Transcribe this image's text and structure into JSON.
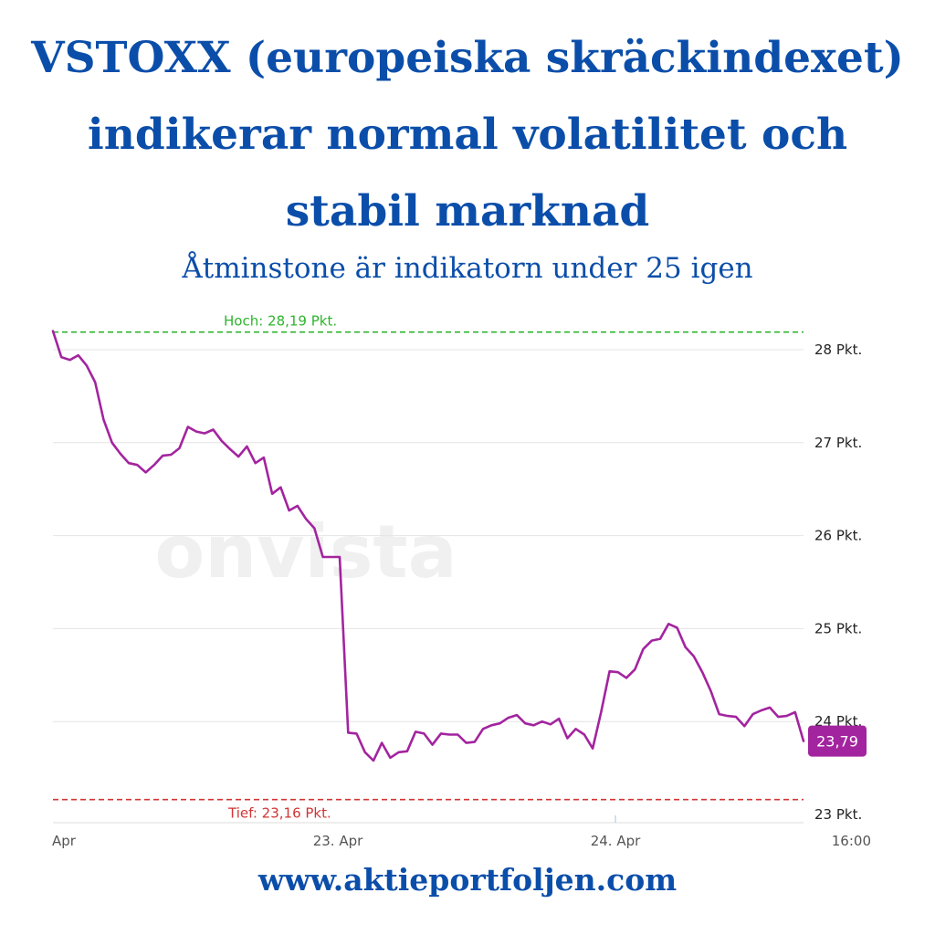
{
  "title": "VSTOXX (europeiska skräckindexet) indikerar normal volatilitet och stabil marknad",
  "subtitle": "Åtminstone är indikatorn under 25 igen",
  "footer": "www.aktieportfoljen.com",
  "watermark": "onvista",
  "colors": {
    "heading": "#0b4eaa",
    "line": "#a3249f",
    "high": "#2db52d",
    "low": "#d23434",
    "grid": "#e4e4e4",
    "badge": "#a3249f"
  },
  "chart_data": {
    "type": "line",
    "ylim": [
      23,
      28.19
    ],
    "y_ticks": [
      {
        "value": 28,
        "label": "28 Pkt."
      },
      {
        "value": 27,
        "label": "27 Pkt."
      },
      {
        "value": 26,
        "label": "26 Pkt."
      },
      {
        "value": 25,
        "label": "25 Pkt."
      },
      {
        "value": 24,
        "label": "24 Pkt."
      },
      {
        "value": 23,
        "label": "23 Pkt."
      }
    ],
    "x_ticks": [
      {
        "label": "Apr",
        "align": "left"
      },
      {
        "label": "23. Apr",
        "align": "middle"
      },
      {
        "label": "24. Apr",
        "align": "middle"
      },
      {
        "label": "16:00",
        "align": "end"
      }
    ],
    "high": {
      "value": 28.19,
      "label": "Hoch: 28,19 Pkt."
    },
    "low": {
      "value": 23.16,
      "label": "Tief: 23,16 Pkt."
    },
    "last_value_label": "23,79",
    "last_value": 23.79,
    "series": [
      {
        "values": [
          28.2,
          27.92,
          27.89,
          27.94,
          27.83,
          27.65,
          27.25,
          27.0,
          26.88,
          26.78,
          26.76,
          26.68,
          26.76,
          26.86,
          26.87,
          26.94,
          27.17,
          27.12,
          27.1,
          27.14,
          27.02,
          26.93,
          26.85,
          26.96,
          26.78,
          26.84,
          26.45,
          26.52,
          26.27,
          26.32,
          26.18,
          26.08,
          25.77,
          25.77,
          25.77,
          23.88,
          23.87,
          23.67,
          23.58,
          23.77,
          23.61,
          23.67,
          23.68,
          23.89,
          23.87,
          23.75,
          23.87,
          23.86,
          23.86,
          23.77,
          23.78,
          23.92,
          23.96,
          23.98,
          24.04,
          24.07,
          23.98,
          23.96,
          24.0,
          23.97,
          24.03,
          23.82,
          23.92,
          23.86,
          23.71,
          24.1,
          24.54,
          24.53,
          24.47,
          24.56,
          24.78,
          24.87,
          24.89,
          25.05,
          25.01,
          24.8,
          24.7,
          24.53,
          24.33,
          24.08,
          24.06,
          24.05,
          23.95,
          24.08,
          24.12,
          24.15,
          24.05,
          24.06,
          24.1,
          23.79
        ]
      }
    ]
  }
}
